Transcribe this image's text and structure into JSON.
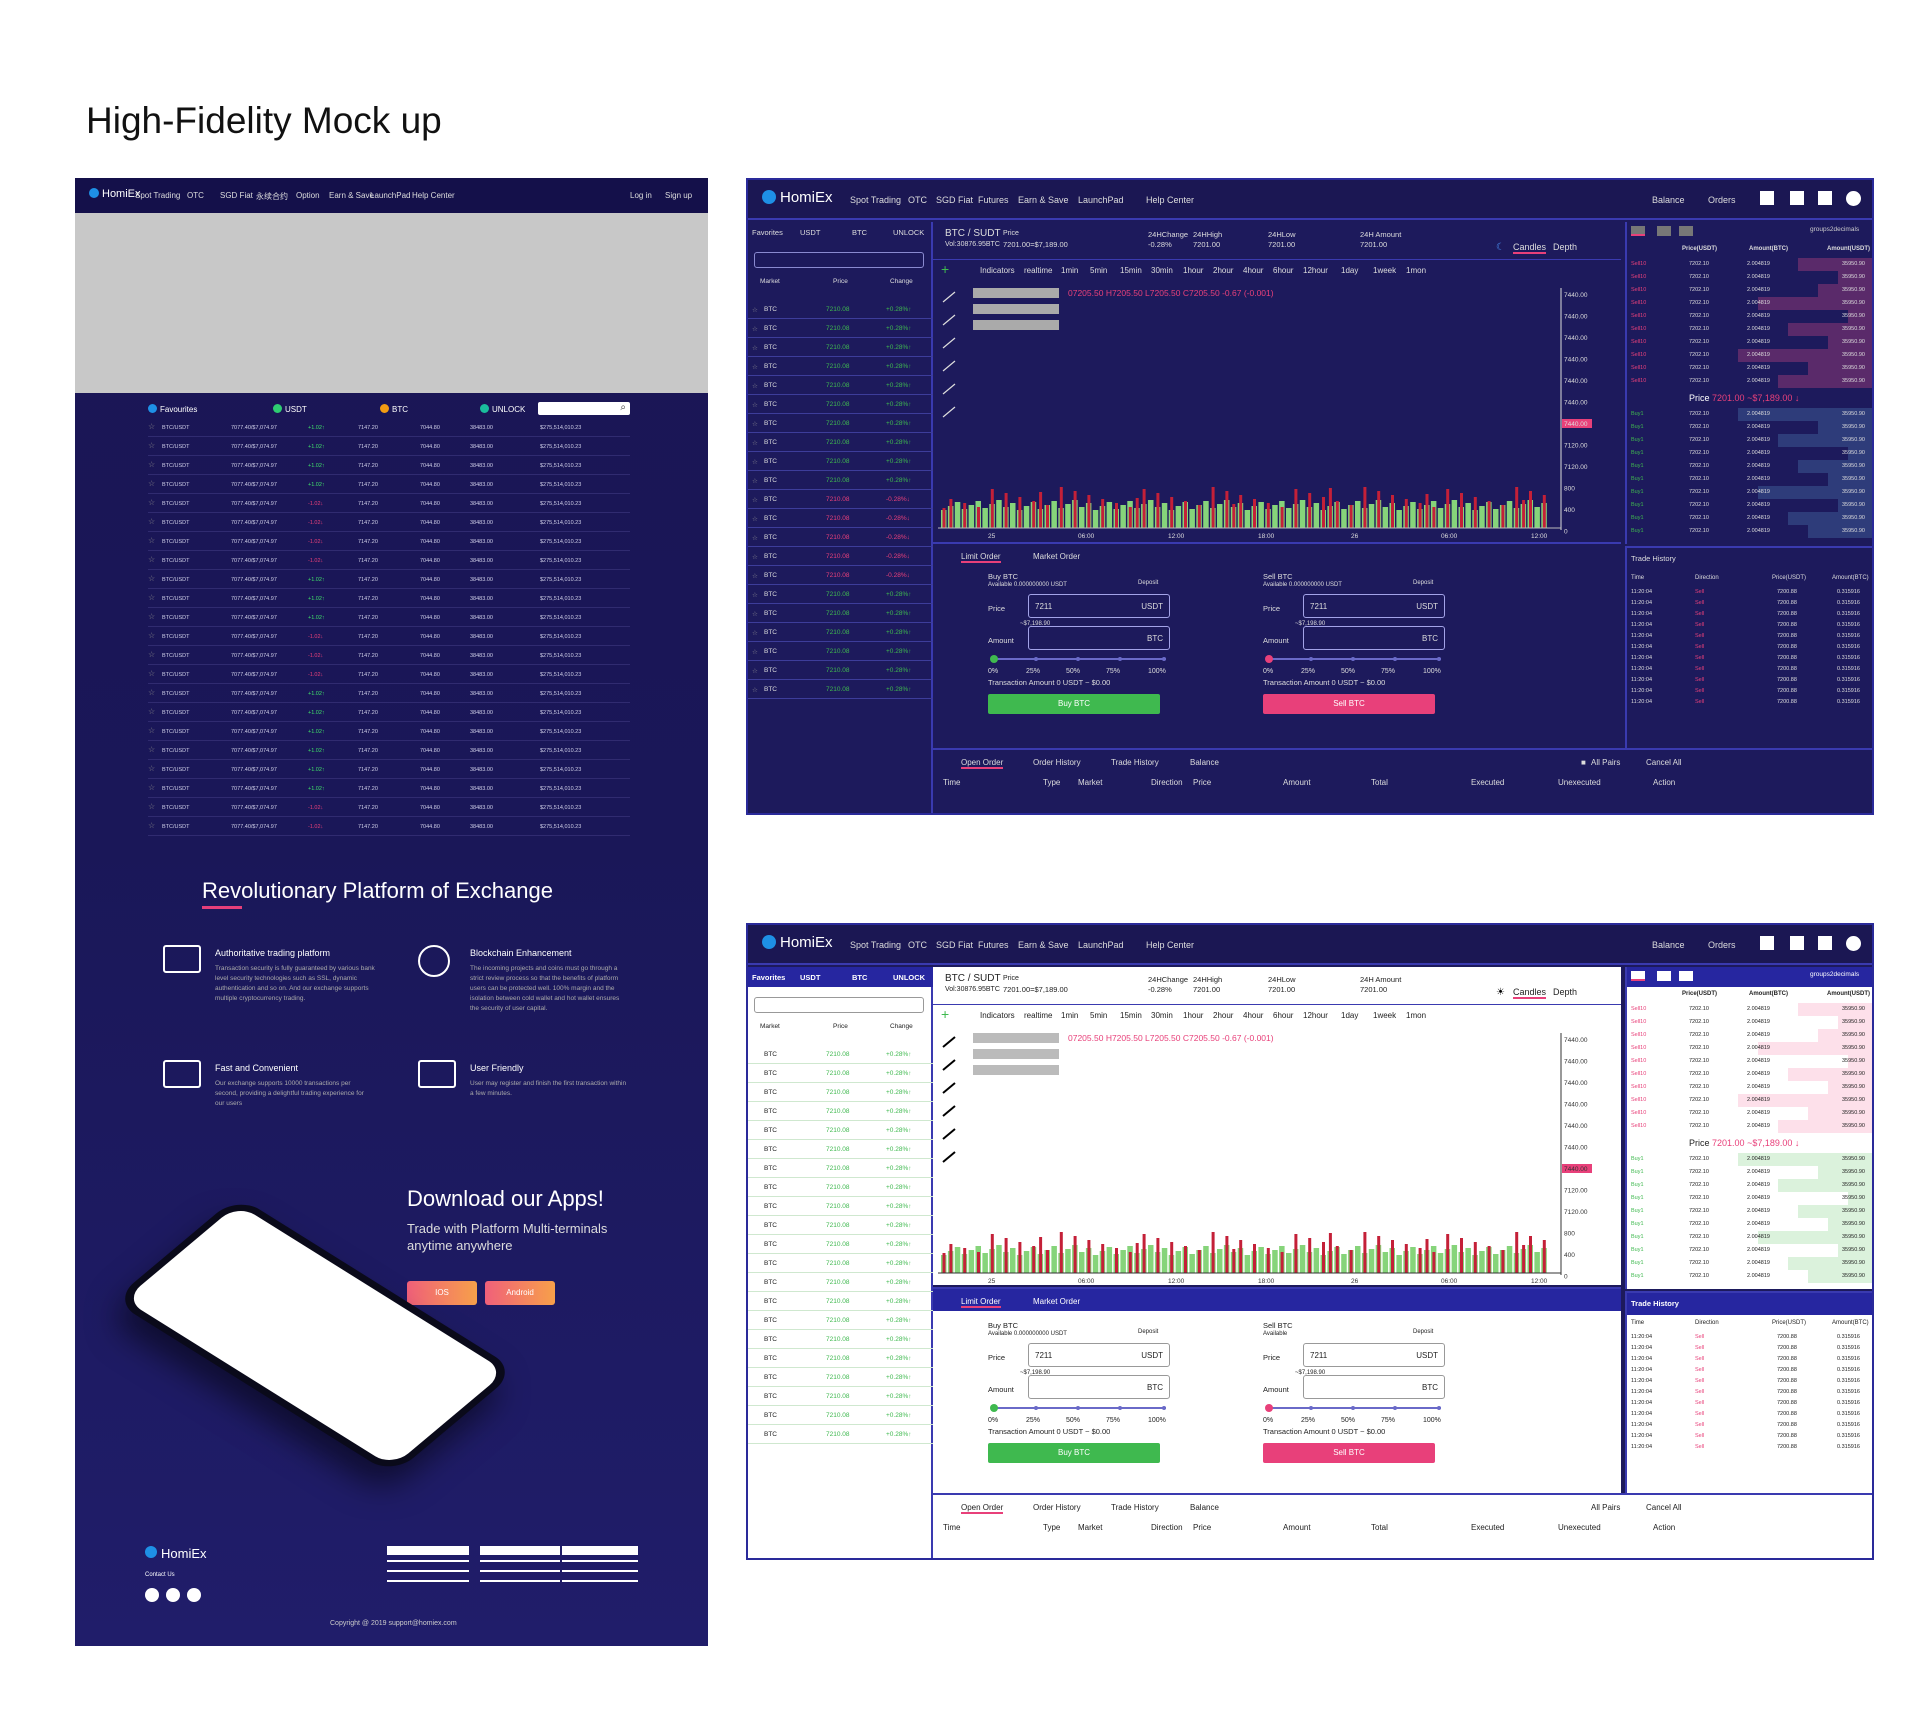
{
  "page_title": "High-Fidelity Mock up",
  "landing": {
    "brand": "HomiEx",
    "nav": [
      "Spot Trading",
      "OTC",
      "SGD Fiat",
      "永续合约",
      "Option",
      "Earn & Save",
      "LaunchPad",
      "Help Center"
    ],
    "login": "Log in",
    "signup": "Sign up",
    "tabs": [
      "Favourites",
      "USDT",
      "BTC",
      "UNLOCK"
    ],
    "tab_colors": [
      "#1e90e6",
      "#2ecc71",
      "#f39c12",
      "#1abc9c"
    ],
    "row": {
      "pair": "BTC/USDT",
      "price": "7077.40/$7,074.97",
      "high": "7147.20",
      "low": "7044.80",
      "vol": "38483.00",
      "amount": "$275,514,010.23"
    },
    "changes": [
      "+1.02↑",
      "+1.02↑",
      "+1.02↑",
      "+1.02↑",
      "-1.02↓",
      "-1.02↓",
      "-1.02↓",
      "-1.02↓",
      "+1.02↑",
      "+1.02↑",
      "+1.02↑",
      "-1.02↓",
      "-1.02↓",
      "-1.02↓",
      "+1.02↑",
      "+1.02↑",
      "+1.02↑",
      "+1.02↑",
      "+1.02↑",
      "+1.02↑",
      "-1.02↓",
      "-1.02↓"
    ],
    "section_title": "Revolutionary Platform of Exchange",
    "features": [
      {
        "title": "Authoritative trading platform",
        "desc": "Transaction security is fully guaranteed by various bank level security technologies such as SSL, dynamic authentication and so on. And our exchange supports multiple cryptocurrency trading.",
        "icon": "monitor-chart-icon"
      },
      {
        "title": "Blockchain Enhancement",
        "desc": "The incoming projects and coins must go through a strict review process so that the benefits of platform users can be protected well. 100% margin and the isolation between cold wallet and hot wallet ensures the security of user capital.",
        "icon": "blockchain-network-icon"
      },
      {
        "title": "Fast and Convenient",
        "desc": "Our exchange supports 10000 transactions per second, providing a delightful trading experience for our users",
        "icon": "fast-dollar-icon"
      },
      {
        "title": "User Friendly",
        "desc": "User may register and finish the first transaction within a few minutes.",
        "icon": "user-document-icon"
      }
    ],
    "download_title": "Download our Apps!",
    "download_sub": "Trade with Platform Multi-terminals anytime anywhere",
    "ios": "IOS",
    "android": "Android",
    "footer_brand": "HomiEx",
    "contact": "Contact Us",
    "copyright": "Copyright @ 2019 support@homiex.com"
  },
  "trading": {
    "brand": "HomiEx",
    "nav": [
      "Spot Trading",
      "OTC",
      "SGD Fiat",
      "Futures",
      "Earn & Save",
      "LaunchPad",
      "Help Center"
    ],
    "balance": "Balance",
    "orders": "Orders",
    "market_tabs": [
      "Favorites",
      "USDT",
      "BTC",
      "UNLOCK"
    ],
    "market_cols": [
      "Market",
      "Price",
      "Change"
    ],
    "market_row": {
      "coin": "BTC",
      "price": "7210.08"
    },
    "pair": "BTC / SUDT",
    "vol": "Vol:30876.95BTC",
    "price_label": "Price",
    "price_value": "7201.00=$7,189.00",
    "change_label": "24HChange",
    "change_value": "-0.28%",
    "high_label": "24HHigh",
    "high_value": "7201.00",
    "low_label": "24HLow",
    "low_value": "7201.00",
    "amount_label": "24H Amount",
    "amount_value": "7201.00",
    "candles": "Candles",
    "depth": "Depth",
    "intervals": [
      "Indicators",
      "realtime",
      "1min",
      "5min",
      "15min",
      "30min",
      "1hour",
      "2hour",
      "4hour",
      "6hour",
      "12hour",
      "1day",
      "1week",
      "1mon"
    ],
    "ohlc": "07205.50  H7205.50  L7205.50  C7205.50  -0.67 (-0.001)",
    "yaxis": [
      "7440.00",
      "7440.00",
      "7440.00",
      "7440.00",
      "7440.00",
      "7440.00",
      "7440.00",
      "7120.00",
      "7120.00",
      "800",
      "400",
      "0"
    ],
    "xaxis": [
      "25",
      "06:00",
      "12:00",
      "18:00",
      "26",
      "06:00",
      "12:00"
    ],
    "groups": "groups2decimals",
    "ob_cols": [
      "Price(USDT)",
      "Amount(BTC)",
      "Amount(USDT)"
    ],
    "ob_sell": {
      "side": "Sell10",
      "price": "7202.10",
      "amt": "2.004819",
      "total": "35950.90"
    },
    "ob_buy": {
      "side": "Buy1",
      "price": "7202.10",
      "amt": "2.004819",
      "total": "35950.90"
    },
    "ob_price_label": "Price",
    "ob_price": "7201.00 ~$7,189.00 ↓",
    "limit": "Limit Order",
    "market": "Market Order",
    "buy_title": "Buy BTC",
    "sell_title": "Sell BTC",
    "available": "Available 0.000000000 USDT",
    "available_light_sell": "Available",
    "deposit": "Deposit",
    "price": "Price",
    "amount": "Amount",
    "price_val": "7211",
    "usdt": "USDT",
    "btc": "BTC",
    "approx": "~$7,198.90",
    "pcts": [
      "0%",
      "25%",
      "50%",
      "75%",
      "100%"
    ],
    "tx": "Transaction Amount 0 USDT ~ $0.00",
    "buy_btn": "Buy BTC",
    "sell_btn": "Sell BTC",
    "trade_history": "Trade History",
    "th_cols": [
      "Time",
      "Direction",
      "Price(USDT)",
      "Amount(BTC)"
    ],
    "th_row": {
      "time": "11:20:04",
      "dir": "Sell",
      "price": "7200.88",
      "amt": "0.315916"
    },
    "order_tabs": [
      "Open Order",
      "Order History",
      "Trade History",
      "Balance"
    ],
    "all_pairs": "All Pairs",
    "cancel_all": "Cancel All",
    "order_cols": [
      "Time",
      "Type",
      "Market",
      "Direction",
      "Price",
      "Amount",
      "Total",
      "Executed",
      "Unexecuted",
      "Action"
    ],
    "dark_changes": [
      "+0.28%↑",
      "+0.28%↑",
      "+0.28%↑",
      "+0.28%↑",
      "+0.28%↑",
      "+0.28%↑",
      "+0.28%↑",
      "+0.28%↑",
      "+0.28%↑",
      "+0.28%↑",
      "-0.28%↓",
      "-0.28%↓",
      "-0.28%↓",
      "-0.28%↓",
      "-0.28%↓",
      "+0.28%↑",
      "+0.28%↑",
      "+0.28%↑",
      "+0.28%↑",
      "+0.28%↑",
      "+0.28%↑"
    ]
  },
  "colors": {
    "green": "#3fb94f",
    "red": "#e8407a",
    "bar_green": "#86d47a",
    "bar_red": "#c42038",
    "bg": "#1d1a5c"
  }
}
